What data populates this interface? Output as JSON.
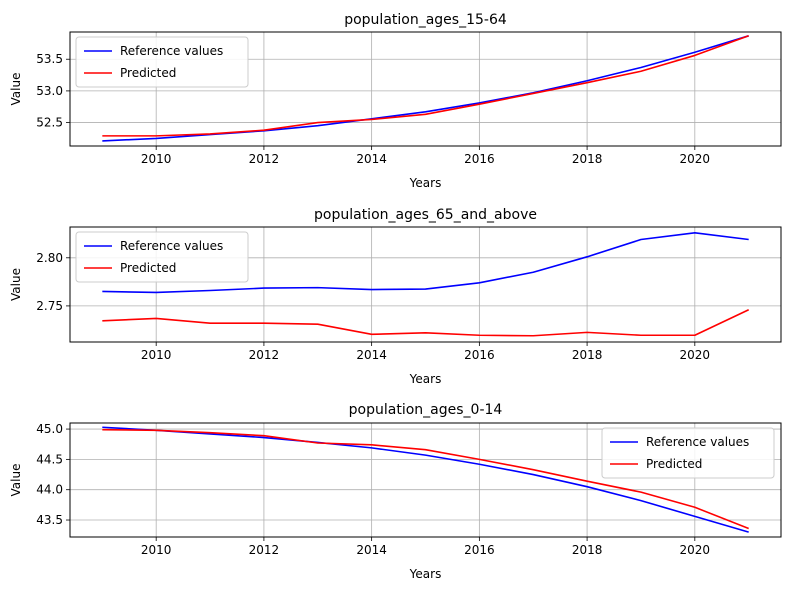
{
  "chart_data": [
    {
      "type": "line",
      "title": "population_ages_15-64",
      "xlabel": "Years",
      "ylabel": "Value",
      "x": [
        2009,
        2010,
        2011,
        2012,
        2013,
        2014,
        2015,
        2016,
        2017,
        2018,
        2019,
        2020,
        2021
      ],
      "xlim": [
        2008.4,
        2021.6
      ],
      "ylim": [
        52.13,
        53.93
      ],
      "xticks": [
        2010,
        2012,
        2014,
        2016,
        2018,
        2020
      ],
      "yticks": [
        52.5,
        53.0,
        53.5
      ],
      "ytick_labels": [
        "52.5",
        "53.0",
        "53.5"
      ],
      "grid": true,
      "legend_position": "upper-left",
      "series": [
        {
          "name": "Reference values",
          "color": "#0000ff",
          "values": [
            52.21,
            52.25,
            52.31,
            52.37,
            52.45,
            52.56,
            52.67,
            52.81,
            52.97,
            53.16,
            53.37,
            53.61,
            53.87
          ]
        },
        {
          "name": "Predicted",
          "color": "#ff0000",
          "values": [
            52.29,
            52.29,
            52.32,
            52.38,
            52.5,
            52.55,
            52.63,
            52.79,
            52.96,
            53.13,
            53.31,
            53.56,
            53.87
          ]
        }
      ]
    },
    {
      "type": "line",
      "title": "population_ages_65_and_above",
      "xlabel": "Years",
      "ylabel": "Value",
      "x": [
        2009,
        2010,
        2011,
        2012,
        2013,
        2014,
        2015,
        2016,
        2017,
        2018,
        2019,
        2020,
        2021
      ],
      "xlim": [
        2008.4,
        2021.6
      ],
      "ylim": [
        2.7125,
        2.832
      ],
      "xticks": [
        2010,
        2012,
        2014,
        2016,
        2018,
        2020
      ],
      "yticks": [
        2.75,
        2.8
      ],
      "ytick_labels": [
        "2.75",
        "2.80"
      ],
      "grid": true,
      "legend_position": "upper-left",
      "series": [
        {
          "name": "Reference values",
          "color": "#0000ff",
          "values": [
            2.765,
            2.764,
            2.766,
            2.7685,
            2.769,
            2.767,
            2.7675,
            2.774,
            2.785,
            2.801,
            2.819,
            2.826,
            2.819
          ]
        },
        {
          "name": "Predicted",
          "color": "#ff0000",
          "values": [
            2.7345,
            2.737,
            2.732,
            2.732,
            2.731,
            2.7205,
            2.722,
            2.7195,
            2.719,
            2.7225,
            2.7195,
            2.7195,
            2.746
          ]
        }
      ]
    },
    {
      "type": "line",
      "title": "population_ages_0-14",
      "xlabel": "Years",
      "ylabel": "Value",
      "x": [
        2009,
        2010,
        2011,
        2012,
        2013,
        2014,
        2015,
        2016,
        2017,
        2018,
        2019,
        2020,
        2021
      ],
      "xlim": [
        2008.4,
        2021.6
      ],
      "ylim": [
        43.22,
        45.1
      ],
      "xticks": [
        2010,
        2012,
        2014,
        2016,
        2018,
        2020
      ],
      "yticks": [
        43.5,
        44.0,
        44.5,
        45.0
      ],
      "ytick_labels": [
        "43.5",
        "44.0",
        "44.5",
        "45.0"
      ],
      "grid": true,
      "legend_position": "upper-right",
      "series": [
        {
          "name": "Reference values",
          "color": "#0000ff",
          "values": [
            45.03,
            44.98,
            44.92,
            44.86,
            44.78,
            44.69,
            44.57,
            44.42,
            44.25,
            44.05,
            43.82,
            43.56,
            43.3
          ]
        },
        {
          "name": "Predicted",
          "color": "#ff0000",
          "values": [
            44.99,
            44.98,
            44.94,
            44.89,
            44.77,
            44.74,
            44.66,
            44.5,
            44.33,
            44.14,
            43.96,
            43.71,
            43.36
          ]
        }
      ]
    }
  ]
}
